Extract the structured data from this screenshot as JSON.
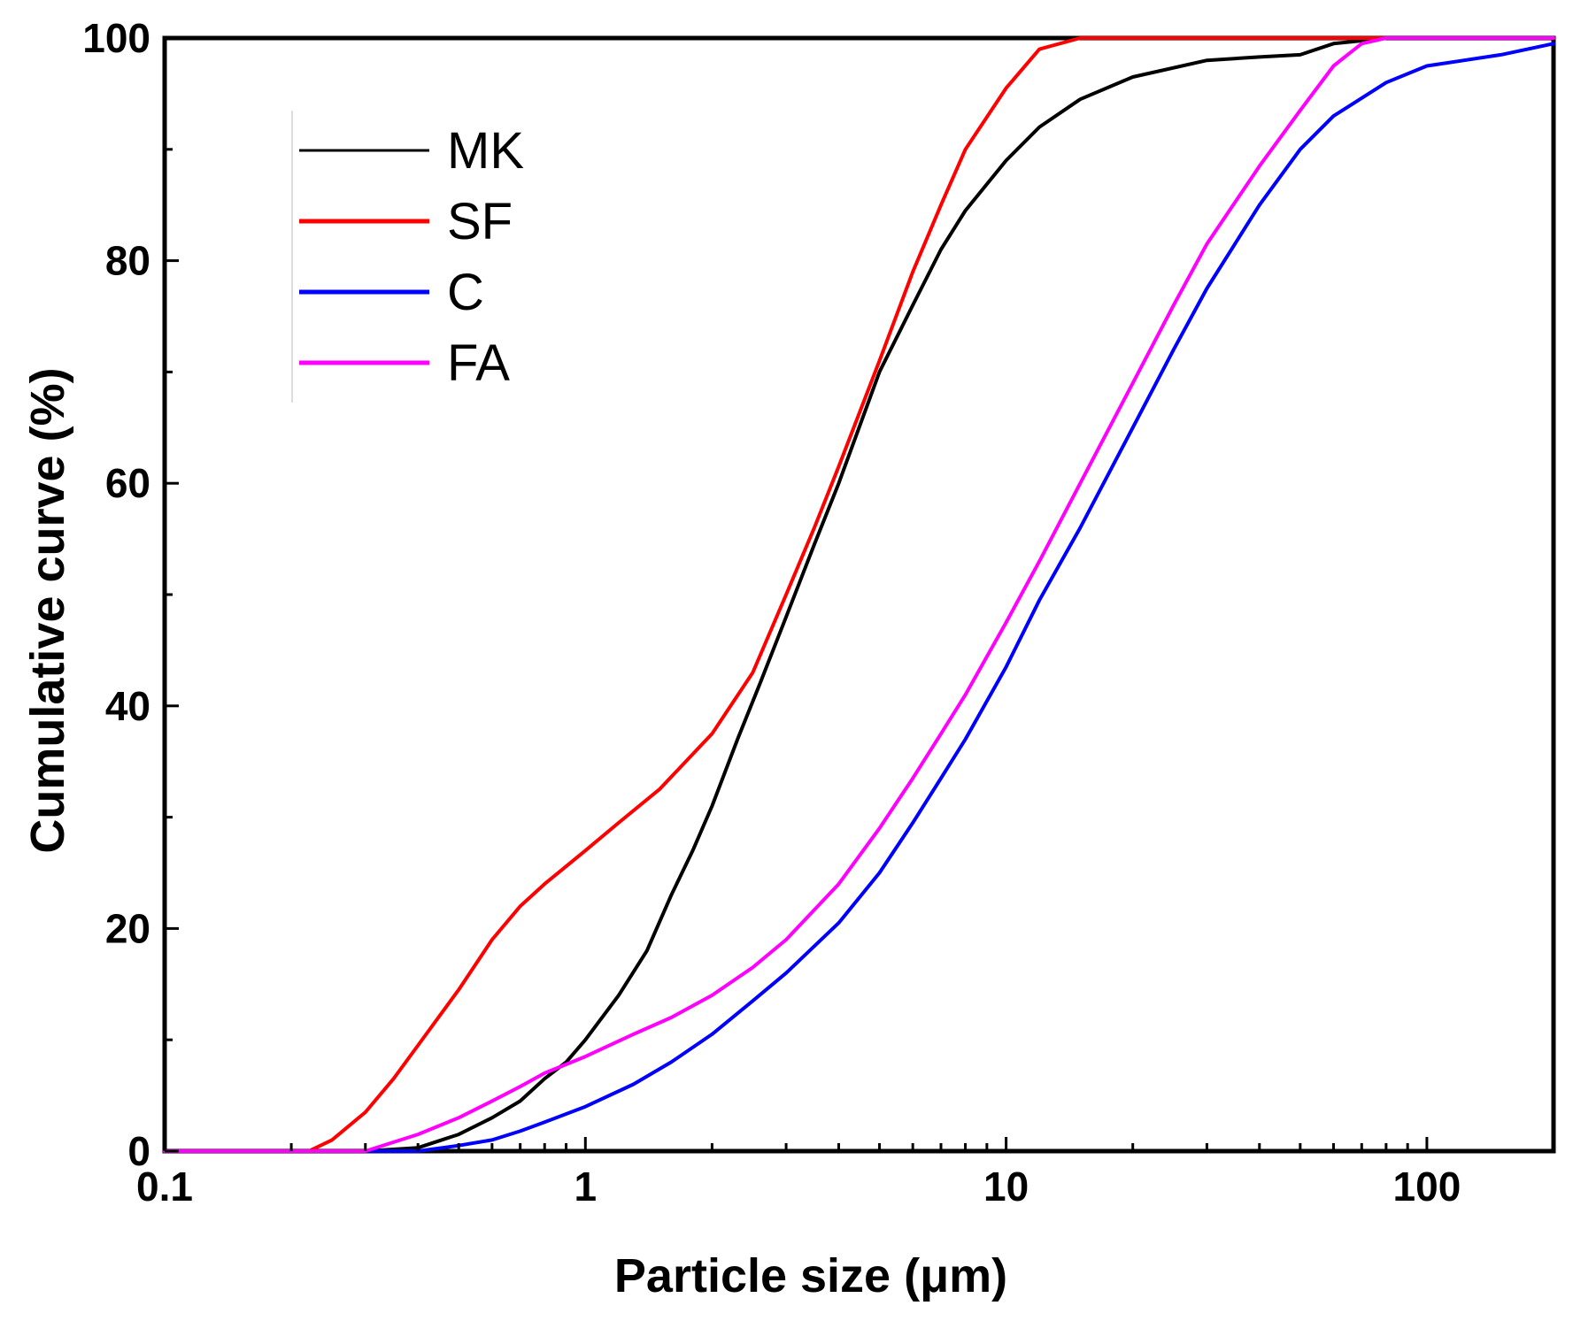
{
  "chart_data": {
    "type": "line",
    "title": "",
    "xlabel": "Particle size (μm)",
    "ylabel": "Cumulative curve (%)",
    "xscale": "log",
    "xlim": [
      0.1,
      200
    ],
    "ylim": [
      0,
      100
    ],
    "xticks": [
      {
        "value": 0.1,
        "label": "0.1"
      },
      {
        "value": 1,
        "label": "1"
      },
      {
        "value": 10,
        "label": "10"
      },
      {
        "value": 100,
        "label": "100"
      }
    ],
    "yticks": [
      {
        "value": 0,
        "label": "0"
      },
      {
        "value": 20,
        "label": "20"
      },
      {
        "value": 40,
        "label": "40"
      },
      {
        "value": 60,
        "label": "60"
      },
      {
        "value": 80,
        "label": "80"
      },
      {
        "value": 100,
        "label": "100"
      }
    ],
    "legend_position": "top-left",
    "series": [
      {
        "name": "MK",
        "color": "#000000",
        "points": [
          [
            0.1,
            0
          ],
          [
            0.3,
            0
          ],
          [
            0.4,
            0.3
          ],
          [
            0.5,
            1.5
          ],
          [
            0.6,
            3
          ],
          [
            0.7,
            4.5
          ],
          [
            0.8,
            6.5
          ],
          [
            0.9,
            8
          ],
          [
            1.0,
            10
          ],
          [
            1.2,
            14
          ],
          [
            1.4,
            18
          ],
          [
            1.6,
            23
          ],
          [
            1.8,
            27
          ],
          [
            2.0,
            31
          ],
          [
            2.3,
            37
          ],
          [
            2.6,
            42
          ],
          [
            3.0,
            48
          ],
          [
            3.5,
            54.5
          ],
          [
            4.0,
            60
          ],
          [
            5.0,
            70
          ],
          [
            6.0,
            76
          ],
          [
            7.0,
            81
          ],
          [
            8.0,
            84.5
          ],
          [
            10,
            89
          ],
          [
            12,
            92
          ],
          [
            15,
            94.5
          ],
          [
            20,
            96.5
          ],
          [
            30,
            98
          ],
          [
            40,
            98.3
          ],
          [
            50,
            98.5
          ],
          [
            60,
            99.5
          ],
          [
            80,
            100
          ],
          [
            200,
            100
          ]
        ]
      },
      {
        "name": "SF",
        "color": "#ff0000",
        "points": [
          [
            0.1,
            0
          ],
          [
            0.22,
            0
          ],
          [
            0.25,
            1
          ],
          [
            0.3,
            3.5
          ],
          [
            0.35,
            6.5
          ],
          [
            0.4,
            9.5
          ],
          [
            0.5,
            14.5
          ],
          [
            0.6,
            19
          ],
          [
            0.7,
            22
          ],
          [
            0.8,
            24
          ],
          [
            1.0,
            27
          ],
          [
            1.2,
            29.5
          ],
          [
            1.5,
            32.5
          ],
          [
            2.0,
            37.5
          ],
          [
            2.5,
            43
          ],
          [
            3.0,
            50
          ],
          [
            3.5,
            56
          ],
          [
            4.0,
            61.5
          ],
          [
            5.0,
            71
          ],
          [
            6.0,
            79
          ],
          [
            7.0,
            85
          ],
          [
            8.0,
            90
          ],
          [
            10,
            95.5
          ],
          [
            12,
            99
          ],
          [
            15,
            100
          ],
          [
            200,
            100
          ]
        ]
      },
      {
        "name": "C",
        "color": "#0000ff",
        "points": [
          [
            0.1,
            0
          ],
          [
            0.4,
            0
          ],
          [
            0.5,
            0.5
          ],
          [
            0.6,
            1
          ],
          [
            0.7,
            1.8
          ],
          [
            0.8,
            2.6
          ],
          [
            1.0,
            4
          ],
          [
            1.3,
            6
          ],
          [
            1.6,
            8
          ],
          [
            2.0,
            10.5
          ],
          [
            2.5,
            13.5
          ],
          [
            3.0,
            16
          ],
          [
            4.0,
            20.5
          ],
          [
            5.0,
            25
          ],
          [
            6.0,
            29.5
          ],
          [
            7.0,
            33.5
          ],
          [
            8.0,
            37
          ],
          [
            10,
            43.5
          ],
          [
            12,
            49.5
          ],
          [
            15,
            56
          ],
          [
            20,
            65
          ],
          [
            25,
            72
          ],
          [
            30,
            77.5
          ],
          [
            40,
            85
          ],
          [
            50,
            90
          ],
          [
            60,
            93
          ],
          [
            80,
            96
          ],
          [
            100,
            97.5
          ],
          [
            150,
            98.5
          ],
          [
            200,
            99.5
          ]
        ]
      },
      {
        "name": "FA",
        "color": "#ff00ff",
        "points": [
          [
            0.1,
            0
          ],
          [
            0.3,
            0
          ],
          [
            0.4,
            1.5
          ],
          [
            0.5,
            3
          ],
          [
            0.6,
            4.5
          ],
          [
            0.7,
            5.8
          ],
          [
            0.8,
            7
          ],
          [
            1.0,
            8.5
          ],
          [
            1.3,
            10.5
          ],
          [
            1.6,
            12
          ],
          [
            2.0,
            14
          ],
          [
            2.5,
            16.5
          ],
          [
            3.0,
            19
          ],
          [
            4.0,
            24
          ],
          [
            5.0,
            29
          ],
          [
            6.0,
            33.5
          ],
          [
            7.0,
            37.5
          ],
          [
            8.0,
            41
          ],
          [
            10,
            47.5
          ],
          [
            12,
            53
          ],
          [
            15,
            60
          ],
          [
            20,
            69
          ],
          [
            25,
            76
          ],
          [
            30,
            81.5
          ],
          [
            40,
            88.5
          ],
          [
            50,
            93.5
          ],
          [
            60,
            97.5
          ],
          [
            70,
            99.5
          ],
          [
            80,
            100
          ],
          [
            200,
            100
          ]
        ]
      }
    ]
  }
}
